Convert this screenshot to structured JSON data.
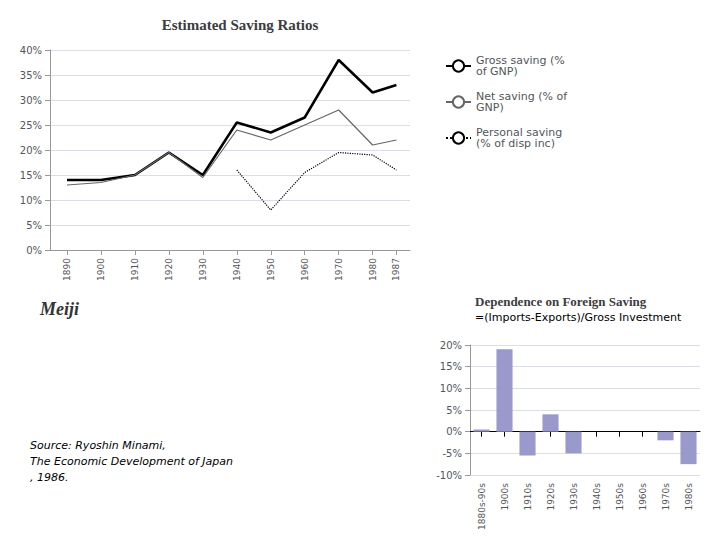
{
  "chart_data": [
    {
      "type": "line",
      "title": "Estimated Saving Ratios",
      "x": [
        1890,
        1900,
        1910,
        1920,
        1930,
        1940,
        1950,
        1960,
        1970,
        1980,
        1987
      ],
      "series": [
        {
          "name": "Gross saving (%\nof GNP)",
          "color": "#000000",
          "line_style": "solid",
          "values": [
            14,
            14,
            15,
            19.5,
            15,
            25.5,
            23.5,
            26.5,
            38,
            31.5,
            33
          ]
        },
        {
          "name": "Net saving (% of\nGNP)",
          "color": "#666666",
          "line_style": "solid",
          "values": [
            13,
            13.5,
            15,
            19.5,
            14.5,
            24,
            22,
            25,
            28,
            21,
            22
          ]
        },
        {
          "name": "Personal saving\n(% of disp inc)",
          "color": "#000000",
          "line_style": "dotted",
          "values": [
            null,
            null,
            null,
            null,
            null,
            16,
            8,
            15.5,
            19.5,
            19,
            16
          ]
        }
      ],
      "xlim": [
        1885,
        1991
      ],
      "xticks": [
        1890,
        1900,
        1910,
        1920,
        1930,
        1940,
        1950,
        1960,
        1970,
        1980,
        1987
      ],
      "ylim": [
        0,
        40
      ],
      "yticks": [
        {
          "value": 0,
          "label": "0%"
        },
        {
          "value": 5,
          "label": "5%"
        },
        {
          "value": 10,
          "label": "10%"
        },
        {
          "value": 15,
          "label": "15%"
        },
        {
          "value": 20,
          "label": "20%"
        },
        {
          "value": 25,
          "label": "25%"
        },
        {
          "value": 30,
          "label": "30%"
        },
        {
          "value": 35,
          "label": "35%"
        },
        {
          "value": 40,
          "label": "40%"
        }
      ],
      "grid": true,
      "legend": "right",
      "annotations": [
        "Meiji",
        "Source: Ryoshin Minami,",
        "The Economic Development of Japan",
        ", 1986."
      ]
    },
    {
      "type": "bar",
      "title": "Dependence on Foreign Saving",
      "subtitle": "=(Imports-Exports)/Gross Investment",
      "categories": [
        "1880s-90s",
        "1900s",
        "1910s",
        "1920s",
        "1930s",
        "1940s",
        "1950s",
        "1960s",
        "1970s",
        "1980s"
      ],
      "values": [
        0.5,
        19,
        -5.5,
        4,
        -5,
        0,
        0,
        0,
        -2,
        -7.5
      ],
      "color": "#9999cc",
      "ylim": [
        -10,
        20
      ],
      "yticks": [
        {
          "value": -10,
          "label": "-10%"
        },
        {
          "value": -5,
          "label": "-5%"
        },
        {
          "value": 0,
          "label": "0%"
        },
        {
          "value": 5,
          "label": "5%"
        },
        {
          "value": 10,
          "label": "10%"
        },
        {
          "value": 15,
          "label": "15%"
        },
        {
          "value": 20,
          "label": "20%"
        }
      ],
      "grid": true
    }
  ]
}
